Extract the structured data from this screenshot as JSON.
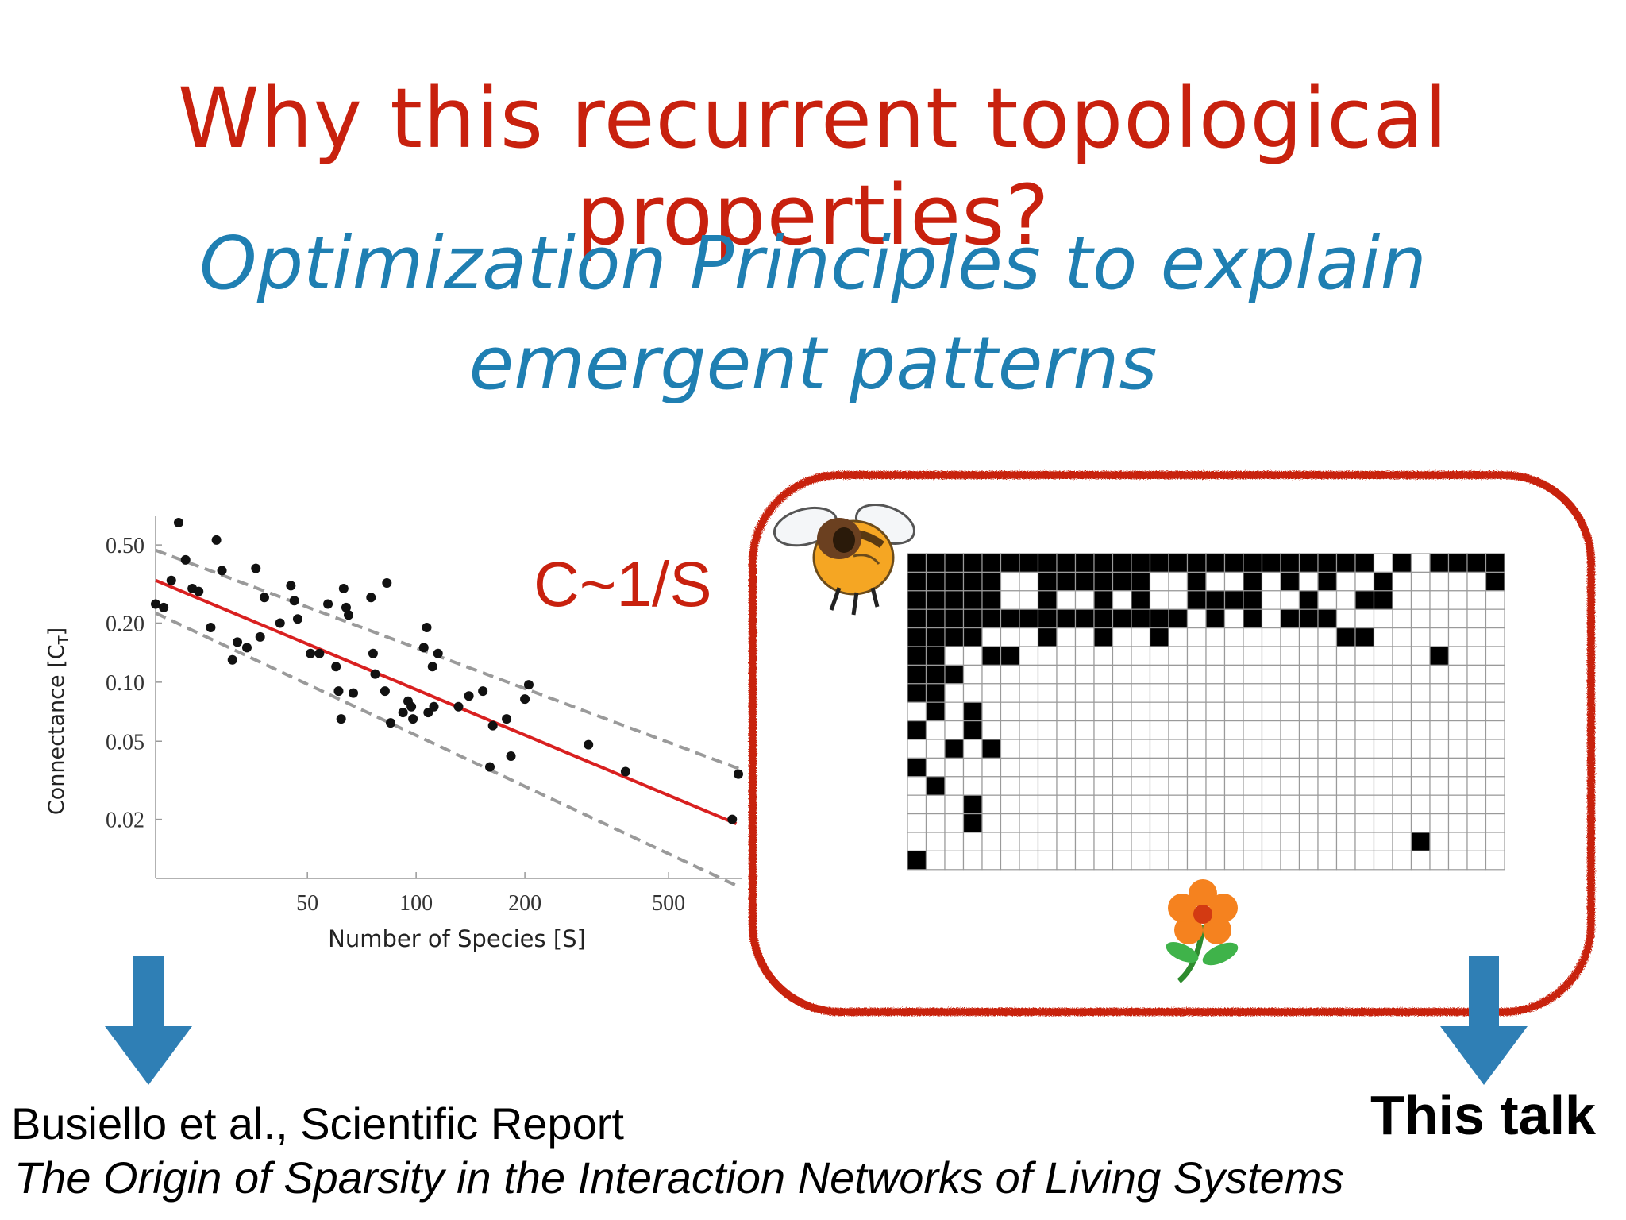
{
  "slide": {
    "title": "Why this recurrent topological properties?",
    "subtitle_line1": "Optimization Principles to explain",
    "subtitle_line2": "emergent patterns",
    "law": "C~1/S",
    "citation_authors": "Busiello et al., Scientific Report",
    "citation_title": "The Origin of Sparsity in the Interaction Networks of Living Systems",
    "this_talk": "This talk"
  },
  "colors": {
    "title_red": "#c8210e",
    "subtitle_blue": "#1f7fb2",
    "arrow_blue": "#2f7fb5",
    "fit_red": "#d92020",
    "frame_red": "#c8210e"
  },
  "icons": [
    "bee-icon",
    "flower-icon",
    "arrow-down-icon"
  ],
  "chart_data": {
    "type": "scatter",
    "xlabel": "Number of Species [S]",
    "ylabel": "Connectance [C",
    "ylabel_sub": "T",
    "ylabel_close": "]",
    "x_scale": "log",
    "y_scale": "log",
    "xlim": [
      19,
      800
    ],
    "ylim": [
      0.01,
      0.7
    ],
    "x_ticks": [
      50,
      100,
      200,
      500
    ],
    "x_tick_labels": [
      "50",
      "100",
      "200",
      "500"
    ],
    "y_ticks": [
      0.02,
      0.05,
      0.1,
      0.2,
      0.5
    ],
    "y_tick_labels": [
      "0.02",
      "0.05",
      "0.10",
      "0.20",
      "0.50"
    ],
    "grid": false,
    "fit_line": {
      "x": [
        19,
        770
      ],
      "y": [
        0.33,
        0.019
      ]
    },
    "bound_upper": {
      "x": [
        19,
        790
      ],
      "y": [
        0.47,
        0.036
      ]
    },
    "bound_lower": {
      "x": [
        19,
        790
      ],
      "y": [
        0.225,
        0.009
      ]
    },
    "points": [
      [
        19,
        0.25
      ],
      [
        20,
        0.24
      ],
      [
        21,
        0.33
      ],
      [
        22,
        0.65
      ],
      [
        23,
        0.42
      ],
      [
        24,
        0.3
      ],
      [
        25,
        0.29
      ],
      [
        27,
        0.19
      ],
      [
        28,
        0.53
      ],
      [
        29,
        0.37
      ],
      [
        31,
        0.13
      ],
      [
        32,
        0.16
      ],
      [
        34,
        0.15
      ],
      [
        36,
        0.38
      ],
      [
        37,
        0.17
      ],
      [
        38,
        0.27
      ],
      [
        42,
        0.2
      ],
      [
        45,
        0.31
      ],
      [
        46,
        0.26
      ],
      [
        47,
        0.21
      ],
      [
        51,
        0.14
      ],
      [
        54,
        0.14
      ],
      [
        57,
        0.25
      ],
      [
        60,
        0.12
      ],
      [
        61,
        0.09
      ],
      [
        62,
        0.065
      ],
      [
        63,
        0.3
      ],
      [
        64,
        0.24
      ],
      [
        65,
        0.22
      ],
      [
        67,
        0.088
      ],
      [
        75,
        0.27
      ],
      [
        76,
        0.14
      ],
      [
        77,
        0.11
      ],
      [
        82,
        0.09
      ],
      [
        83,
        0.32
      ],
      [
        85,
        0.062
      ],
      [
        92,
        0.07
      ],
      [
        95,
        0.08
      ],
      [
        97,
        0.075
      ],
      [
        98,
        0.065
      ],
      [
        105,
        0.15
      ],
      [
        107,
        0.19
      ],
      [
        108,
        0.07
      ],
      [
        111,
        0.12
      ],
      [
        112,
        0.075
      ],
      [
        115,
        0.14
      ],
      [
        131,
        0.075
      ],
      [
        140,
        0.085
      ],
      [
        153,
        0.09
      ],
      [
        160,
        0.037
      ],
      [
        163,
        0.06
      ],
      [
        178,
        0.065
      ],
      [
        183,
        0.042
      ],
      [
        200,
        0.082
      ],
      [
        205,
        0.097
      ],
      [
        300,
        0.048
      ],
      [
        380,
        0.035
      ],
      [
        750,
        0.02
      ],
      [
        780,
        0.034
      ]
    ]
  },
  "matrix": {
    "rows": 17,
    "cols": 32,
    "filled": [
      [
        0,
        0
      ],
      [
        0,
        1
      ],
      [
        0,
        2
      ],
      [
        0,
        3
      ],
      [
        0,
        4
      ],
      [
        0,
        5
      ],
      [
        0,
        6
      ],
      [
        0,
        7
      ],
      [
        0,
        8
      ],
      [
        0,
        9
      ],
      [
        0,
        10
      ],
      [
        0,
        11
      ],
      [
        0,
        12
      ],
      [
        0,
        13
      ],
      [
        0,
        14
      ],
      [
        0,
        15
      ],
      [
        0,
        16
      ],
      [
        0,
        17
      ],
      [
        0,
        18
      ],
      [
        0,
        19
      ],
      [
        0,
        20
      ],
      [
        0,
        21
      ],
      [
        0,
        22
      ],
      [
        0,
        23
      ],
      [
        0,
        24
      ],
      [
        0,
        26
      ],
      [
        0,
        28
      ],
      [
        0,
        29
      ],
      [
        0,
        30
      ],
      [
        0,
        31
      ],
      [
        1,
        0
      ],
      [
        1,
        1
      ],
      [
        1,
        2
      ],
      [
        1,
        3
      ],
      [
        1,
        4
      ],
      [
        1,
        7
      ],
      [
        1,
        8
      ],
      [
        1,
        9
      ],
      [
        1,
        10
      ],
      [
        1,
        11
      ],
      [
        1,
        12
      ],
      [
        1,
        15
      ],
      [
        1,
        18
      ],
      [
        1,
        20
      ],
      [
        1,
        22
      ],
      [
        1,
        25
      ],
      [
        1,
        31
      ],
      [
        2,
        0
      ],
      [
        2,
        1
      ],
      [
        2,
        2
      ],
      [
        2,
        3
      ],
      [
        2,
        4
      ],
      [
        2,
        7
      ],
      [
        2,
        10
      ],
      [
        2,
        12
      ],
      [
        2,
        15
      ],
      [
        2,
        16
      ],
      [
        2,
        17
      ],
      [
        2,
        18
      ],
      [
        2,
        21
      ],
      [
        2,
        24
      ],
      [
        2,
        25
      ],
      [
        3,
        0
      ],
      [
        3,
        1
      ],
      [
        3,
        2
      ],
      [
        3,
        3
      ],
      [
        3,
        4
      ],
      [
        3,
        5
      ],
      [
        3,
        6
      ],
      [
        3,
        7
      ],
      [
        3,
        8
      ],
      [
        3,
        9
      ],
      [
        3,
        10
      ],
      [
        3,
        11
      ],
      [
        3,
        12
      ],
      [
        3,
        13
      ],
      [
        3,
        14
      ],
      [
        3,
        16
      ],
      [
        3,
        18
      ],
      [
        3,
        20
      ],
      [
        3,
        21
      ],
      [
        3,
        22
      ],
      [
        4,
        0
      ],
      [
        4,
        1
      ],
      [
        4,
        2
      ],
      [
        4,
        3
      ],
      [
        4,
        7
      ],
      [
        4,
        10
      ],
      [
        4,
        13
      ],
      [
        4,
        23
      ],
      [
        4,
        24
      ],
      [
        5,
        0
      ],
      [
        5,
        1
      ],
      [
        5,
        4
      ],
      [
        5,
        5
      ],
      [
        5,
        28
      ],
      [
        6,
        0
      ],
      [
        6,
        1
      ],
      [
        6,
        2
      ],
      [
        7,
        0
      ],
      [
        7,
        1
      ],
      [
        8,
        1
      ],
      [
        8,
        3
      ],
      [
        9,
        0
      ],
      [
        9,
        3
      ],
      [
        10,
        2
      ],
      [
        10,
        4
      ],
      [
        11,
        0
      ],
      [
        12,
        1
      ],
      [
        13,
        3
      ],
      [
        14,
        3
      ],
      [
        15,
        27
      ],
      [
        16,
        0
      ]
    ]
  }
}
